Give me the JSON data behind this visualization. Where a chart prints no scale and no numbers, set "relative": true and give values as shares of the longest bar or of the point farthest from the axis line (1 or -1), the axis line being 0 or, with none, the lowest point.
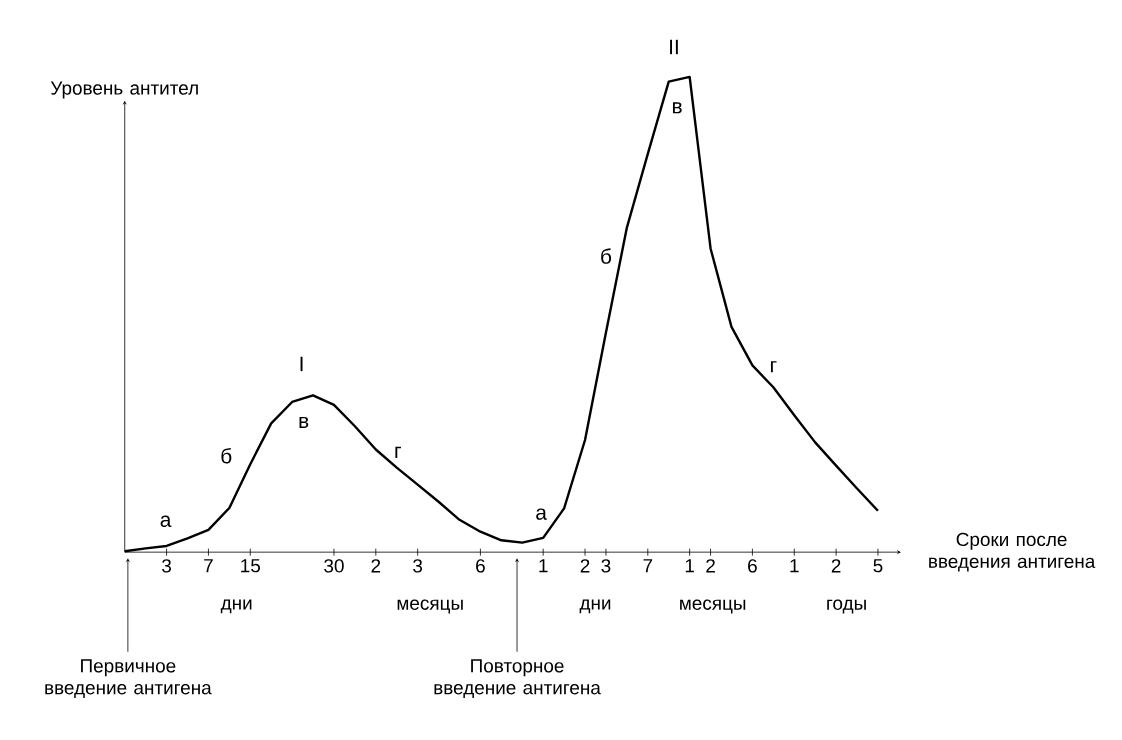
{
  "chart_data": {
    "type": "line",
    "xlabel": "Сроки после введения антигена",
    "ylabel": "Уровень антител",
    "relative": true,
    "color": "#000000",
    "categories": [
      null,
      null,
      "3",
      null,
      "7",
      null,
      "15",
      null,
      null,
      null,
      "30",
      null,
      "2",
      null,
      "3",
      null,
      null,
      "6",
      null,
      null,
      "1",
      null,
      "2",
      "3",
      null,
      "7",
      null,
      "1",
      "2",
      null,
      "6",
      null,
      "1",
      null,
      "2",
      null,
      "5"
    ],
    "values": [
      0.002,
      0.008,
      0.013,
      0.029,
      0.047,
      0.093,
      0.185,
      0.271,
      0.316,
      0.33,
      0.31,
      0.265,
      0.216,
      0.178,
      0.142,
      0.106,
      0.068,
      0.043,
      0.025,
      0.02,
      0.03,
      0.092,
      0.236,
      0.462,
      0.683,
      0.838,
      0.99,
      1,
      0.639,
      0.474,
      0.393,
      0.347,
      0.288,
      0.231,
      0.182,
      0.134,
      0.087
    ],
    "annotations": [
      "а",
      "б",
      "в",
      "г",
      "I",
      "а",
      "б",
      "в",
      "г",
      "II",
      "дни",
      "месяцы",
      "дни",
      "месяцы",
      "годы",
      "Первичное введение антигена",
      "Повторное введение антигена"
    ]
  }
}
